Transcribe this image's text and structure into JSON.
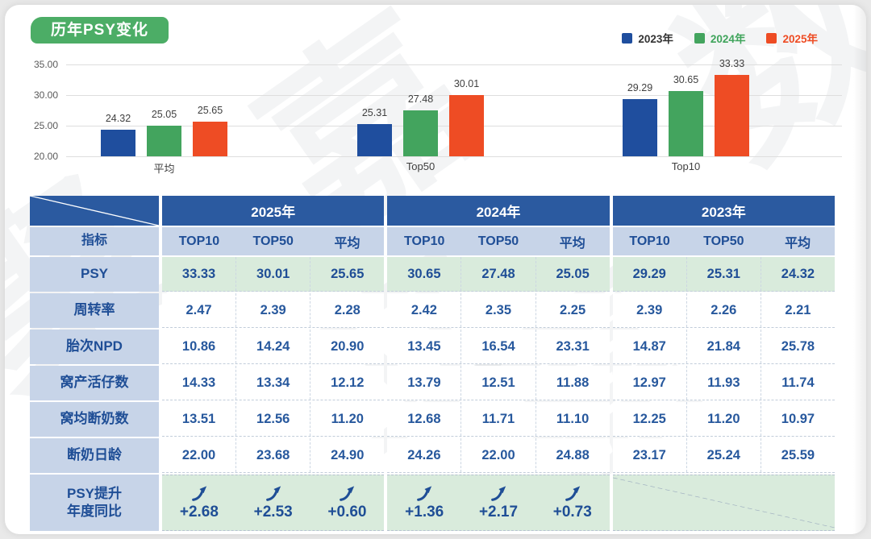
{
  "page": {
    "title_badge": "历年PSY变化"
  },
  "legend": [
    {
      "label": "2023年",
      "color": "#1f4e9e",
      "text_color": "#333333"
    },
    {
      "label": "2024年",
      "color": "#43a45e",
      "text_color": "#3fa45b"
    },
    {
      "label": "2025年",
      "color": "#ee4c24",
      "text_color": "#ee4c24"
    }
  ],
  "chart_data": {
    "type": "bar",
    "title": "历年PSY变化",
    "categories": [
      "平均",
      "Top50",
      "Top10"
    ],
    "series": [
      {
        "name": "2023年",
        "color": "#1f4e9e",
        "values": [
          24.32,
          25.31,
          29.29
        ]
      },
      {
        "name": "2024年",
        "color": "#43a45e",
        "values": [
          25.05,
          27.48,
          30.65
        ]
      },
      {
        "name": "2025年",
        "color": "#ee4c24",
        "values": [
          25.65,
          30.01,
          33.33
        ]
      }
    ],
    "xlabel": "",
    "ylabel": "",
    "ylim": [
      20,
      35
    ],
    "yticks": [
      "35.00",
      "30.00",
      "25.00",
      "20.00"
    ],
    "grid": true,
    "legend_position": "top-right"
  },
  "table": {
    "metric_header": "指标",
    "year_groups": [
      "2025年",
      "2024年",
      "2023年"
    ],
    "sub_headers": [
      "TOP10",
      "TOP50",
      "平均"
    ],
    "rows": [
      {
        "label": "PSY",
        "highlight": true,
        "values": [
          "33.33",
          "30.01",
          "25.65",
          "30.65",
          "27.48",
          "25.05",
          "29.29",
          "25.31",
          "24.32"
        ]
      },
      {
        "label": "周转率",
        "highlight": false,
        "values": [
          "2.47",
          "2.39",
          "2.28",
          "2.42",
          "2.35",
          "2.25",
          "2.39",
          "2.26",
          "2.21"
        ]
      },
      {
        "label": "胎次NPD",
        "highlight": false,
        "values": [
          "10.86",
          "14.24",
          "20.90",
          "13.45",
          "16.54",
          "23.31",
          "14.87",
          "21.84",
          "25.78"
        ]
      },
      {
        "label": "窝产活仔数",
        "highlight": false,
        "values": [
          "14.33",
          "13.34",
          "12.12",
          "13.79",
          "12.51",
          "11.88",
          "12.97",
          "11.93",
          "11.74"
        ]
      },
      {
        "label": "窝均断奶数",
        "highlight": false,
        "values": [
          "13.51",
          "12.56",
          "11.20",
          "12.68",
          "11.71",
          "11.10",
          "12.25",
          "11.20",
          "10.97"
        ]
      },
      {
        "label": "断奶日龄",
        "highlight": false,
        "values": [
          "22.00",
          "23.68",
          "24.90",
          "24.26",
          "22.00",
          "24.88",
          "23.17",
          "25.24",
          "25.59"
        ]
      }
    ],
    "footer": {
      "label_line1": "PSY提升",
      "label_line2": "年度同比",
      "arrow_icon": "trend-up-arrow",
      "values": [
        "+2.68",
        "+2.53",
        "+0.60",
        "+1.36",
        "+2.17",
        "+0.73"
      ],
      "na_group": "2023年"
    }
  },
  "watermark_chars": [
    "嘉",
    "数",
    "聚",
    "立",
    "嘉"
  ],
  "colors": {
    "badge_green": "#4cad66",
    "header_blue": "#2b5aa0",
    "light_blue": "#c7d4e8",
    "row_green": "#d9ebdc",
    "navy_text": "#1f4e96"
  }
}
